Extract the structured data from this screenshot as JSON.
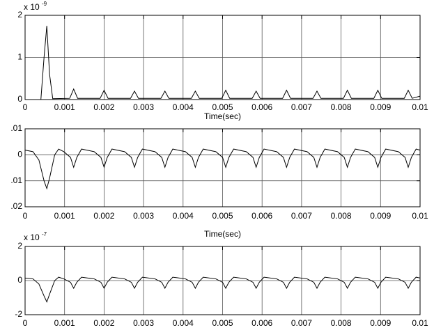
{
  "chart_data": [
    {
      "type": "line",
      "xlabel": "Time(sec)",
      "y_exponent": "x 10",
      "y_exponent_power": "-9",
      "x": [
        0,
        0.0004,
        0.00048,
        0.00055,
        0.00062,
        0.0007,
        0.00113,
        0.00123,
        0.00133,
        0.0019,
        0.002,
        0.0021,
        0.00267,
        0.00277,
        0.00287,
        0.00344,
        0.00354,
        0.00364,
        0.00421,
        0.00431,
        0.00441,
        0.00498,
        0.00508,
        0.00518,
        0.00575,
        0.00585,
        0.00595,
        0.00652,
        0.00662,
        0.00672,
        0.00729,
        0.00739,
        0.00749,
        0.00806,
        0.00816,
        0.00826,
        0.00883,
        0.00893,
        0.00903,
        0.0096,
        0.0097,
        0.0098,
        0.01
      ],
      "series": [
        {
          "color": "#000000",
          "values": [
            0,
            0,
            1.0,
            1.75,
            0.6,
            0.02,
            0.03,
            0.25,
            0.03,
            0.03,
            0.22,
            0.03,
            0.03,
            0.2,
            0.03,
            0.03,
            0.2,
            0.03,
            0.03,
            0.2,
            0.03,
            0.03,
            0.22,
            0.03,
            0.03,
            0.2,
            0.03,
            0.03,
            0.22,
            0.03,
            0.03,
            0.2,
            0.03,
            0.03,
            0.22,
            0.03,
            0.03,
            0.22,
            0.03,
            0.03,
            0.22,
            0.03,
            0.08
          ]
        }
      ],
      "xlim": [
        0,
        0.01
      ],
      "xticks": [
        0,
        0.001,
        0.002,
        0.003,
        0.004,
        0.005,
        0.006,
        0.007,
        0.008,
        0.009,
        0.01
      ],
      "ylim": [
        0,
        2
      ],
      "yticks": [
        0,
        1,
        2
      ],
      "grid": true
    },
    {
      "type": "line",
      "xlabel": "Time(sec)",
      "x": [
        0,
        0.0002,
        0.00035,
        0.00048,
        0.00055,
        0.00062,
        0.00075,
        0.00085,
        0.00098,
        0.00115,
        0.00123,
        0.00131,
        0.00143,
        0.00175,
        0.00192,
        0.002,
        0.00208,
        0.0022,
        0.00252,
        0.00269,
        0.00277,
        0.00285,
        0.00297,
        0.00329,
        0.00346,
        0.00354,
        0.00362,
        0.00374,
        0.00406,
        0.00423,
        0.00431,
        0.00439,
        0.00451,
        0.00483,
        0.005,
        0.00508,
        0.00516,
        0.00528,
        0.0056,
        0.00577,
        0.00585,
        0.00593,
        0.00605,
        0.00637,
        0.00654,
        0.00662,
        0.0067,
        0.00682,
        0.00714,
        0.00731,
        0.00739,
        0.00747,
        0.00759,
        0.00791,
        0.00808,
        0.00816,
        0.00824,
        0.00836,
        0.00868,
        0.00885,
        0.00893,
        0.00901,
        0.00913,
        0.00945,
        0.00962,
        0.0097,
        0.00978,
        0.0099,
        0.01
      ],
      "series": [
        {
          "color": "#000000",
          "values": [
            0.0018,
            0.0012,
            -0.002,
            -0.01,
            -0.013,
            -0.009,
            0,
            0.0022,
            0.0012,
            -0.001,
            -0.0048,
            -0.001,
            0.0022,
            0.0012,
            -0.001,
            -0.0048,
            -0.001,
            0.0022,
            0.0012,
            -0.001,
            -0.0048,
            -0.001,
            0.0022,
            0.0012,
            -0.001,
            -0.0048,
            -0.001,
            0.0022,
            0.0012,
            -0.001,
            -0.0048,
            -0.001,
            0.0022,
            0.0012,
            -0.001,
            -0.0048,
            -0.001,
            0.0022,
            0.0012,
            -0.001,
            -0.0048,
            -0.001,
            0.0022,
            0.0012,
            -0.001,
            -0.0048,
            -0.001,
            0.0022,
            0.0012,
            -0.001,
            -0.0048,
            -0.001,
            0.0022,
            0.0012,
            -0.001,
            -0.0048,
            -0.001,
            0.0022,
            0.0012,
            -0.001,
            -0.0048,
            -0.001,
            0.0022,
            0.0012,
            -0.001,
            -0.0048,
            -0.001,
            0.0022,
            0.0018
          ]
        }
      ],
      "xlim": [
        0,
        0.01
      ],
      "xticks": [
        0,
        0.001,
        0.002,
        0.003,
        0.004,
        0.005,
        0.006,
        0.007,
        0.008,
        0.009,
        0.01
      ],
      "ylim": [
        -0.02,
        0.01
      ],
      "yticks": [
        {
          "value": -0.02,
          "label": ".02"
        },
        {
          "value": -0.01,
          "label": ".01"
        },
        0,
        {
          "value": 0.01,
          "label": ".01"
        }
      ],
      "grid": true
    },
    {
      "type": "line",
      "y_exponent": "x 10",
      "y_exponent_power": "-7",
      "x": [
        0,
        0.0002,
        0.00035,
        0.00048,
        0.00055,
        0.00062,
        0.00075,
        0.00085,
        0.00098,
        0.00115,
        0.00123,
        0.00131,
        0.00143,
        0.00175,
        0.00192,
        0.002,
        0.00208,
        0.0022,
        0.00252,
        0.00269,
        0.00277,
        0.00285,
        0.00297,
        0.00329,
        0.00346,
        0.00354,
        0.00362,
        0.00374,
        0.00406,
        0.00423,
        0.00431,
        0.00439,
        0.00451,
        0.00483,
        0.005,
        0.00508,
        0.00516,
        0.00528,
        0.0056,
        0.00577,
        0.00585,
        0.00593,
        0.00605,
        0.00637,
        0.00654,
        0.00662,
        0.0067,
        0.00682,
        0.00714,
        0.00731,
        0.00739,
        0.00747,
        0.00759,
        0.00791,
        0.00808,
        0.00816,
        0.00824,
        0.00836,
        0.00868,
        0.00885,
        0.00893,
        0.00901,
        0.00913,
        0.00945,
        0.00962,
        0.0097,
        0.00978,
        0.0099,
        0.01
      ],
      "series": [
        {
          "color": "#000000",
          "values": [
            0.15,
            0.1,
            -0.2,
            -0.9,
            -1.25,
            -0.8,
            0,
            0.2,
            0.1,
            -0.1,
            -0.45,
            -0.1,
            0.2,
            0.1,
            -0.1,
            -0.45,
            -0.1,
            0.2,
            0.1,
            -0.1,
            -0.45,
            -0.1,
            0.2,
            0.1,
            -0.1,
            -0.45,
            -0.1,
            0.2,
            0.1,
            -0.1,
            -0.45,
            -0.1,
            0.2,
            0.1,
            -0.1,
            -0.45,
            -0.1,
            0.2,
            0.1,
            -0.1,
            -0.45,
            -0.1,
            0.2,
            0.1,
            -0.1,
            -0.45,
            -0.1,
            0.2,
            0.1,
            -0.1,
            -0.45,
            -0.1,
            0.2,
            0.1,
            -0.1,
            -0.45,
            -0.1,
            0.2,
            0.1,
            -0.1,
            -0.45,
            -0.1,
            0.2,
            0.1,
            -0.1,
            -0.45,
            -0.1,
            0.2,
            0.15
          ]
        }
      ],
      "xlim": [
        0,
        0.01
      ],
      "xticks": [
        0,
        0.001,
        0.002,
        0.003,
        0.004,
        0.005,
        0.006,
        0.007,
        0.008,
        0.009,
        0.01
      ],
      "ylim": [
        -2,
        2
      ],
      "yticks": [
        -2,
        0,
        2
      ],
      "grid": true
    }
  ]
}
